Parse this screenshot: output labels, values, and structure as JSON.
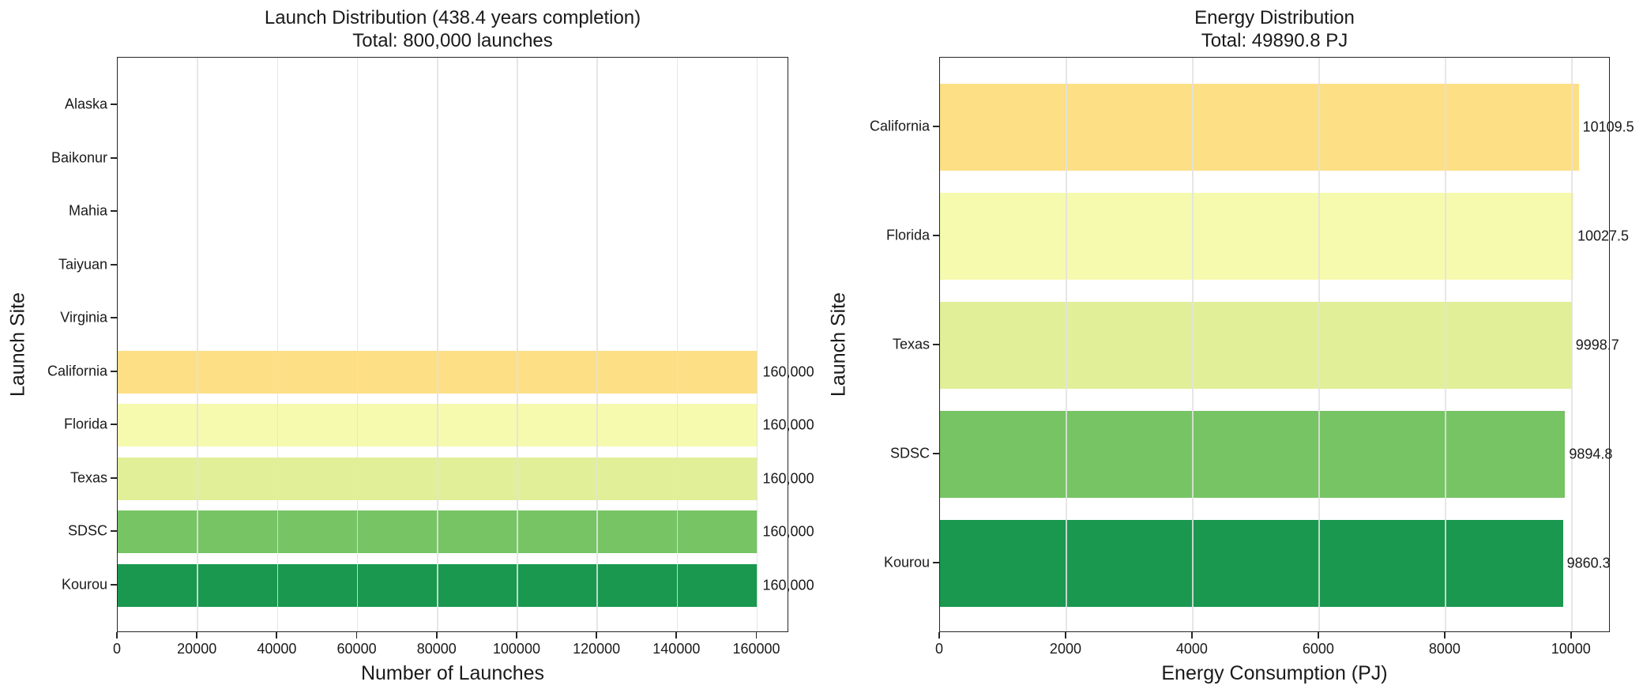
{
  "figure": {
    "background": "#FFFFFF",
    "text_color": "#1A1A1A",
    "spine_color": "#262626",
    "grid_color": "#E2E2E2",
    "grid": true
  },
  "chart_data": [
    {
      "type": "bar",
      "orientation": "horizontal",
      "title": "Launch Distribution (438.4 years completion)",
      "subtitle": "Total: 800,000 launches",
      "xlabel": "Number of Launches",
      "ylabel": "Launch Site",
      "categories": [
        "Alaska",
        "Baikonur",
        "Mahia",
        "Taiyuan",
        "Virginia",
        "California",
        "Florida",
        "Texas",
        "SDSC",
        "Kourou"
      ],
      "values": [
        0,
        0,
        0,
        0,
        0,
        160000,
        160000,
        160000,
        160000,
        160000
      ],
      "bar_labels": [
        null,
        null,
        null,
        null,
        null,
        "160,000",
        "160,000",
        "160,000",
        "160,000",
        "160,000"
      ],
      "bar_colors": [
        null,
        null,
        null,
        null,
        null,
        "#FDDF85",
        "#F5FAAE",
        "#E1EF98",
        "#77C465",
        "#1A9850"
      ],
      "xlim": [
        0,
        168000
      ],
      "xticks": [
        0,
        20000,
        40000,
        60000,
        80000,
        100000,
        120000,
        140000,
        160000
      ],
      "xtick_labels": [
        "0",
        "20000",
        "40000",
        "60000",
        "80000",
        "100000",
        "120000",
        "140000",
        "160000"
      ],
      "grid": true,
      "legend": null
    },
    {
      "type": "bar",
      "orientation": "horizontal",
      "title": "Energy Distribution",
      "subtitle": "Total: 49890.8 PJ",
      "xlabel": "Energy Consumption (PJ)",
      "ylabel": "Launch Site",
      "categories": [
        "California",
        "Florida",
        "Texas",
        "SDSC",
        "Kourou"
      ],
      "values": [
        10109.5,
        10027.5,
        9998.7,
        9894.8,
        9860.3
      ],
      "bar_labels": [
        "10109.5",
        "10027.5",
        "9998.7",
        "9894.8",
        "9860.3"
      ],
      "bar_colors": [
        "#FDDF85",
        "#F5FAAE",
        "#E1EF98",
        "#77C465",
        "#1A9850"
      ],
      "xlim": [
        0,
        10615
      ],
      "xticks": [
        0,
        2000,
        4000,
        6000,
        8000,
        10000
      ],
      "xtick_labels": [
        "0",
        "2000",
        "4000",
        "6000",
        "8000",
        "10000"
      ],
      "grid": true,
      "legend": null
    }
  ]
}
